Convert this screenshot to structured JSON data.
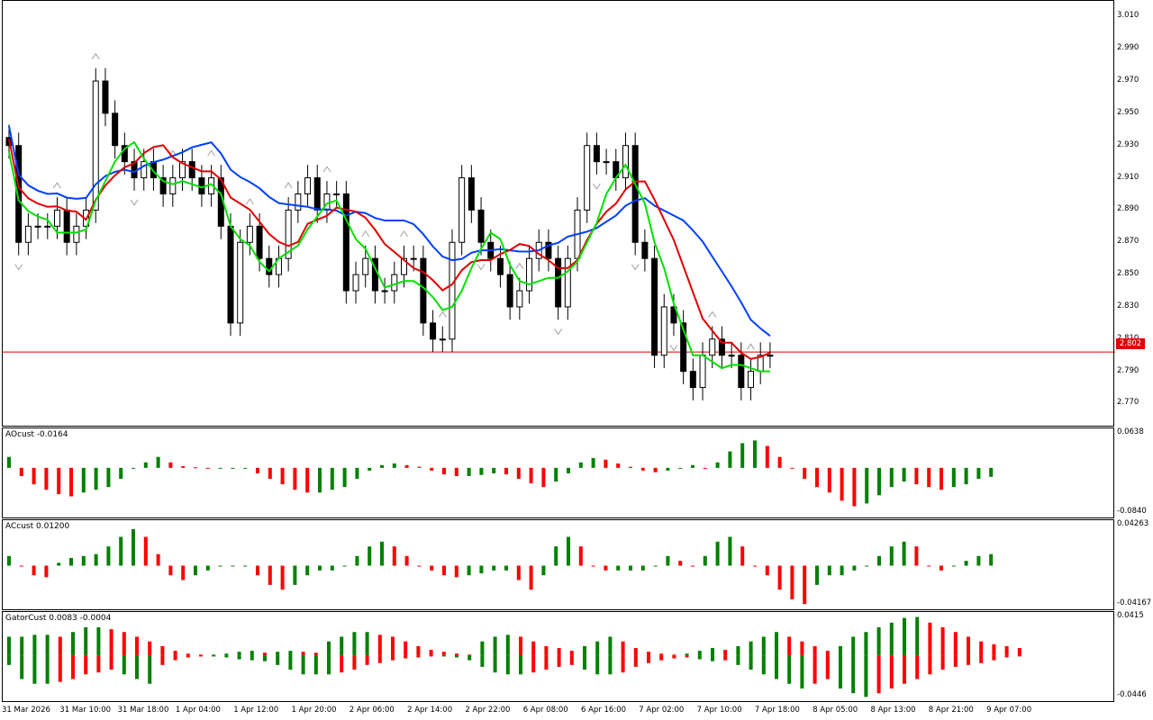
{
  "colors": {
    "up_bar": "#008000",
    "down_bar": "#ff0000",
    "candle_bull": "#ffffff",
    "candle_bear": "#000000",
    "ma_blue": "#0040ff",
    "ma_red": "#e00000",
    "ma_green": "#00e000",
    "current_price_line": "#d00000",
    "fractal": "#a0a0a0"
  },
  "main_chart": {
    "current_price_tag": "2.802",
    "price_ticks": [
      "3.010",
      "2.990",
      "2.970",
      "2.950",
      "2.930",
      "2.910",
      "2.890",
      "2.870",
      "2.850",
      "2.830",
      "2.810",
      "2.790",
      "2.770"
    ],
    "current_price": 2.802
  },
  "ao_panel": {
    "label": "AOcust -0.0164",
    "max_label": "0.0638",
    "min_label": "-0.0840"
  },
  "ac_panel": {
    "label": "ACcust 0.01200",
    "max_label": "0.04263",
    "min_label": "-0.04167"
  },
  "gator_panel": {
    "label": "GatorCust 0.0083 -0.0004",
    "max_label": "0.0415",
    "min_label": "-0.0446"
  },
  "time_axis": {
    "labels": [
      "31 Mar 2026",
      "31 Mar 10:00",
      "31 Mar 18:00",
      "1 Apr 04:00",
      "1 Apr 12:00",
      "1 Apr 20:00",
      "2 Apr 06:00",
      "2 Apr 14:00",
      "2 Apr 22:00",
      "6 Apr 08:00",
      "6 Apr 16:00",
      "7 Apr 02:00",
      "7 Apr 10:00",
      "7 Apr 18:00",
      "8 Apr 05:00",
      "8 Apr 13:00",
      "8 Apr 21:00",
      "9 Apr 07:00"
    ]
  },
  "chart_data": {
    "type": "candlestick",
    "ohlc_close_path": [
      2.93,
      2.87,
      2.88,
      2.88,
      2.88,
      2.89,
      2.87,
      2.88,
      2.89,
      2.97,
      2.95,
      2.93,
      2.92,
      2.91,
      2.92,
      2.91,
      2.9,
      2.91,
      2.92,
      2.91,
      2.9,
      2.91,
      2.88,
      2.82,
      2.87,
      2.88,
      2.86,
      2.85,
      2.86,
      2.89,
      2.9,
      2.91,
      2.89,
      2.9,
      2.9,
      2.84,
      2.85,
      2.86,
      2.84,
      2.84,
      2.85,
      2.86,
      2.86,
      2.82,
      2.81,
      2.81,
      2.87,
      2.91,
      2.89,
      2.87,
      2.86,
      2.85,
      2.83,
      2.84,
      2.86,
      2.87,
      2.86,
      2.83,
      2.86,
      2.89,
      2.93,
      2.92,
      2.92,
      2.91,
      2.93,
      2.87,
      2.86,
      2.8,
      2.83,
      2.82,
      2.79,
      2.78,
      2.8,
      2.81,
      2.8,
      2.8,
      2.78,
      2.79,
      2.8,
      2.8
    ],
    "ao_values": [
      0.02,
      -0.015,
      -0.03,
      -0.04,
      -0.048,
      -0.052,
      -0.045,
      -0.04,
      -0.035,
      -0.02,
      0.0,
      0.01,
      0.02,
      0.01,
      0.003,
      0.001,
      0.0,
      0.0,
      0.0,
      0.0,
      -0.01,
      -0.02,
      -0.03,
      -0.04,
      -0.045,
      -0.045,
      -0.04,
      -0.035,
      -0.02,
      -0.005,
      0.005,
      0.008,
      0.005,
      0.002,
      -0.005,
      -0.012,
      -0.015,
      -0.015,
      -0.013,
      -0.01,
      -0.012,
      -0.02,
      -0.028,
      -0.035,
      -0.025,
      -0.01,
      0.01,
      0.018,
      0.015,
      0.008,
      0.002,
      -0.005,
      -0.008,
      -0.005,
      0.0,
      0.005,
      0.0,
      0.01,
      0.03,
      0.045,
      0.05,
      0.04,
      0.02,
      0.0,
      -0.02,
      -0.035,
      -0.045,
      -0.06,
      -0.07,
      -0.065,
      -0.05,
      -0.035,
      -0.025,
      -0.03,
      -0.035,
      -0.04,
      -0.035,
      -0.03,
      -0.02,
      -0.0164
    ],
    "ac_values": [
      0.01,
      0.0,
      -0.01,
      -0.012,
      0.003,
      0.008,
      0.01,
      0.012,
      0.02,
      0.03,
      0.038,
      0.03,
      0.012,
      -0.01,
      -0.015,
      -0.01,
      -0.005,
      0.0,
      0.0,
      0.0,
      -0.01,
      -0.02,
      -0.025,
      -0.02,
      -0.01,
      -0.005,
      -0.005,
      0.0,
      0.01,
      0.02,
      0.025,
      0.02,
      0.01,
      0.0,
      -0.005,
      -0.01,
      -0.012,
      -0.01,
      -0.008,
      -0.005,
      -0.005,
      -0.015,
      -0.025,
      -0.01,
      0.02,
      0.03,
      0.02,
      0.0,
      -0.005,
      -0.005,
      -0.005,
      -0.005,
      0.0,
      0.01,
      0.005,
      0.0,
      0.01,
      0.025,
      0.03,
      0.02,
      0.0,
      -0.01,
      -0.025,
      -0.035,
      -0.04,
      -0.02,
      -0.01,
      -0.01,
      -0.005,
      0.0,
      0.01,
      0.02,
      0.025,
      0.02,
      0.0,
      -0.005,
      0.0,
      0.005,
      0.01,
      0.012
    ],
    "gator_upper": [
      0.02,
      0.02,
      0.022,
      0.022,
      0.02,
      0.025,
      0.03,
      0.03,
      0.028,
      0.025,
      0.02,
      0.015,
      0.01,
      0.005,
      0.002,
      0.001,
      0.001,
      0.002,
      0.004,
      0.005,
      0.003,
      0.004,
      0.005,
      0.004,
      0.003,
      0.015,
      0.02,
      0.025,
      0.025,
      0.022,
      0.02,
      0.015,
      0.01,
      0.006,
      0.004,
      0.002,
      0.001,
      0.015,
      0.02,
      0.022,
      0.02,
      0.015,
      0.01,
      0.008,
      0.005,
      0.01,
      0.015,
      0.02,
      0.015,
      0.008,
      0.004,
      0.002,
      0.001,
      0.002,
      0.005,
      0.008,
      0.006,
      0.01,
      0.015,
      0.02,
      0.025,
      0.02,
      0.015,
      0.01,
      0.005,
      0.01,
      0.02,
      0.025,
      0.03,
      0.035,
      0.04,
      0.041,
      0.035,
      0.03,
      0.025,
      0.02,
      0.015,
      0.012,
      0.01,
      0.008
    ],
    "gator_lower": [
      -0.01,
      -0.025,
      -0.03,
      -0.03,
      -0.028,
      -0.025,
      -0.02,
      -0.018,
      -0.015,
      -0.02,
      -0.025,
      -0.03,
      -0.01,
      -0.005,
      -0.002,
      -0.001,
      -0.001,
      -0.002,
      -0.004,
      -0.005,
      -0.006,
      -0.01,
      -0.015,
      -0.02,
      -0.02,
      -0.02,
      -0.018,
      -0.015,
      -0.01,
      -0.008,
      -0.005,
      -0.003,
      -0.002,
      -0.001,
      -0.001,
      -0.002,
      -0.005,
      -0.012,
      -0.018,
      -0.02,
      -0.02,
      -0.018,
      -0.015,
      -0.012,
      -0.01,
      -0.015,
      -0.02,
      -0.02,
      -0.018,
      -0.012,
      -0.008,
      -0.005,
      -0.003,
      -0.002,
      -0.004,
      -0.006,
      -0.005,
      -0.01,
      -0.015,
      -0.02,
      -0.025,
      -0.03,
      -0.035,
      -0.03,
      -0.025,
      -0.035,
      -0.04,
      -0.044,
      -0.04,
      -0.035,
      -0.03,
      -0.025,
      -0.02,
      -0.015,
      -0.012,
      -0.01,
      -0.008,
      -0.005,
      -0.002,
      -0.0004
    ]
  }
}
